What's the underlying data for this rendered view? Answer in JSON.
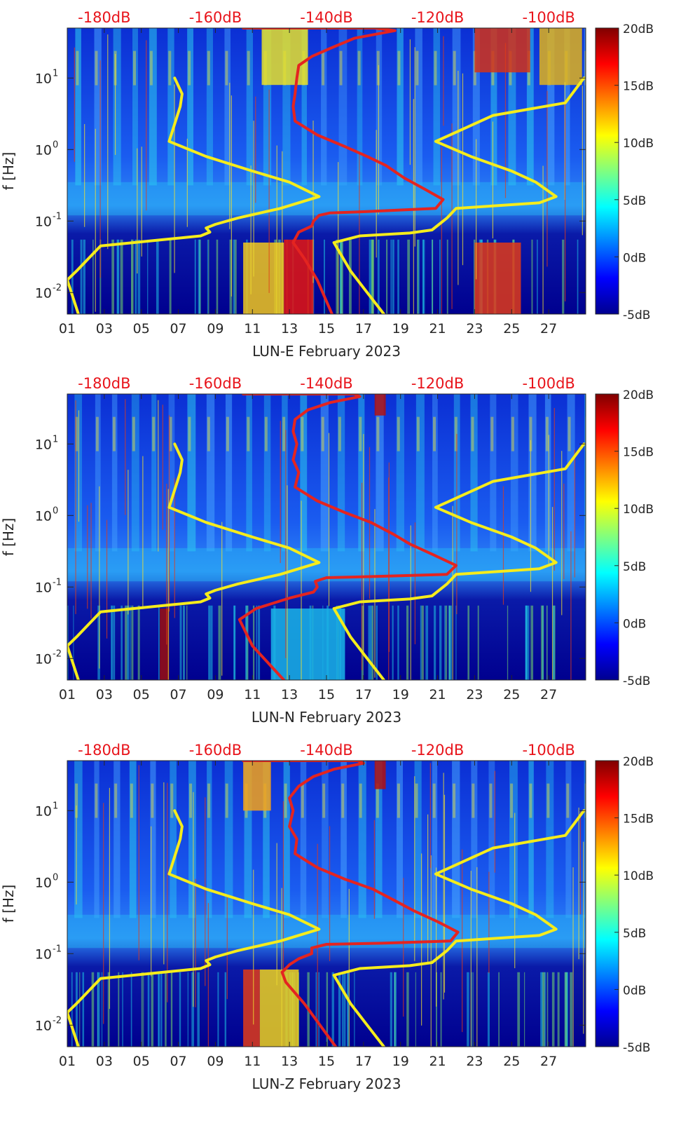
{
  "colors": {
    "top_axis": "#e8141b",
    "red_curve": "#e42420",
    "yellow_curve": "#f5ec1c",
    "axis_text": "#262626"
  },
  "chart_data": [
    {
      "type": "heatmap",
      "title": "",
      "xlabel": "LUN-E February 2023",
      "ylabel": "f [Hz]",
      "x_range_days": [
        1,
        29
      ],
      "x_ticks": [
        "01",
        "03",
        "05",
        "07",
        "09",
        "11",
        "13",
        "15",
        "17",
        "19",
        "21",
        "23",
        "25",
        "27"
      ],
      "y_scale": "log",
      "y_range_hz": [
        0.005,
        50
      ],
      "y_ticks": [
        {
          "value": 0.01,
          "label": "10",
          "exp": "-2"
        },
        {
          "value": 0.1,
          "label": "10",
          "exp": "-1"
        },
        {
          "value": 1,
          "label": "10",
          "exp": "0"
        },
        {
          "value": 10,
          "label": "10",
          "exp": "1"
        }
      ],
      "top_axis_ticks": [
        {
          "day": 3,
          "label": "-180dB"
        },
        {
          "day": 9,
          "label": "-160dB"
        },
        {
          "day": 15,
          "label": "-140dB"
        },
        {
          "day": 21,
          "label": "-120dB"
        },
        {
          "day": 27,
          "label": "-100dB"
        }
      ],
      "colorbar": {
        "min_db": -5,
        "max_db": 20,
        "ticks": [
          "-5dB",
          "0dB",
          "5dB",
          "10dB",
          "15dB",
          "20dB"
        ]
      },
      "series": [
        {
          "name": "red-noise-curve",
          "points": [
            [
              10.5,
              50
            ],
            [
              17.6,
              50
            ],
            [
              18.7,
              46
            ],
            [
              16.5,
              36
            ],
            [
              15.2,
              26
            ],
            [
              14.2,
              20
            ],
            [
              13.5,
              15
            ],
            [
              13.4,
              10
            ],
            [
              13.3,
              6
            ],
            [
              13.2,
              4
            ],
            [
              13.3,
              2.5
            ],
            [
              14.5,
              1.6
            ],
            [
              16,
              1.1
            ],
            [
              17.2,
              0.8
            ],
            [
              18.2,
              0.6
            ],
            [
              19.2,
              0.4
            ],
            [
              20.3,
              0.28
            ],
            [
              21.3,
              0.2
            ],
            [
              20.9,
              0.15
            ],
            [
              17,
              0.135
            ],
            [
              15.2,
              0.13
            ],
            [
              14.6,
              0.12
            ],
            [
              14.3,
              0.1
            ],
            [
              14.2,
              0.085
            ],
            [
              13.5,
              0.07
            ],
            [
              13.2,
              0.05
            ],
            [
              13.8,
              0.03
            ],
            [
              14.5,
              0.015
            ],
            [
              15.3,
              0.005
            ]
          ]
        },
        {
          "name": "yellow-noise-curve-left",
          "points": [
            [
              6.8,
              10
            ],
            [
              7.2,
              6
            ],
            [
              7.1,
              4
            ],
            [
              6.5,
              1.3
            ],
            [
              8.5,
              0.8
            ],
            [
              11,
              0.5
            ],
            [
              13,
              0.35
            ],
            [
              14.6,
              0.22
            ],
            [
              12.5,
              0.15
            ],
            [
              10.2,
              0.11
            ],
            [
              9,
              0.09
            ],
            [
              8.5,
              0.08
            ],
            [
              8.7,
              0.07
            ],
            [
              8.2,
              0.062
            ],
            [
              6.2,
              0.055
            ],
            [
              2.8,
              0.045
            ],
            [
              1.5,
              0.02
            ],
            [
              1,
              0.015
            ],
            [
              1.6,
              0.005
            ]
          ]
        },
        {
          "name": "yellow-noise-curve-right",
          "points": [
            [
              28.9,
              10
            ],
            [
              27.9,
              4.5
            ],
            [
              24,
              3
            ],
            [
              20.9,
              1.3
            ],
            [
              22.8,
              0.8
            ],
            [
              25,
              0.5
            ],
            [
              26.3,
              0.35
            ],
            [
              27.4,
              0.22
            ],
            [
              26.5,
              0.18
            ],
            [
              22,
              0.15
            ],
            [
              21.5,
              0.11
            ],
            [
              20.7,
              0.075
            ],
            [
              19.5,
              0.068
            ],
            [
              16.8,
              0.062
            ],
            [
              15.4,
              0.05
            ],
            [
              16.3,
              0.02
            ],
            [
              17.2,
              0.01
            ],
            [
              18.1,
              0.005
            ]
          ]
        }
      ]
    },
    {
      "type": "heatmap",
      "title": "",
      "xlabel": "LUN-N February 2023",
      "ylabel": "f [Hz]",
      "x_range_days": [
        1,
        29
      ],
      "x_ticks": [
        "01",
        "03",
        "05",
        "07",
        "09",
        "11",
        "13",
        "15",
        "17",
        "19",
        "21",
        "23",
        "25",
        "27"
      ],
      "y_scale": "log",
      "y_range_hz": [
        0.005,
        50
      ],
      "y_ticks": [
        {
          "value": 0.01,
          "label": "10",
          "exp": "-2"
        },
        {
          "value": 0.1,
          "label": "10",
          "exp": "-1"
        },
        {
          "value": 1,
          "label": "10",
          "exp": "0"
        },
        {
          "value": 10,
          "label": "10",
          "exp": "1"
        }
      ],
      "top_axis_ticks": [
        {
          "day": 3,
          "label": "-180dB"
        },
        {
          "day": 9,
          "label": "-160dB"
        },
        {
          "day": 15,
          "label": "-140dB"
        },
        {
          "day": 21,
          "label": "-120dB"
        },
        {
          "day": 27,
          "label": "-100dB"
        }
      ],
      "colorbar": {
        "min_db": -5,
        "max_db": 20,
        "ticks": [
          "-5dB",
          "0dB",
          "5dB",
          "10dB",
          "15dB",
          "20dB"
        ]
      },
      "series": [
        {
          "name": "red-noise-curve",
          "points": [
            [
              10.5,
              50
            ],
            [
              16.5,
              50
            ],
            [
              16.8,
              46
            ],
            [
              15.2,
              38
            ],
            [
              14,
              30
            ],
            [
              13.3,
              22
            ],
            [
              13.2,
              15
            ],
            [
              13.4,
              10
            ],
            [
              13.2,
              6
            ],
            [
              13.5,
              4
            ],
            [
              13.3,
              2.5
            ],
            [
              14.5,
              1.6
            ],
            [
              16,
              1.1
            ],
            [
              17.4,
              0.8
            ],
            [
              18.6,
              0.55
            ],
            [
              19.5,
              0.4
            ],
            [
              20.8,
              0.28
            ],
            [
              22,
              0.2
            ],
            [
              21.5,
              0.15
            ],
            [
              17.5,
              0.14
            ],
            [
              15,
              0.135
            ],
            [
              14.4,
              0.12
            ],
            [
              14.5,
              0.1
            ],
            [
              14.3,
              0.085
            ],
            [
              13,
              0.07
            ],
            [
              12,
              0.058
            ],
            [
              11.2,
              0.05
            ],
            [
              10.3,
              0.035
            ],
            [
              11,
              0.015
            ],
            [
              12.7,
              0.005
            ]
          ]
        },
        {
          "name": "yellow-noise-curve-left",
          "points": [
            [
              6.8,
              10
            ],
            [
              7.2,
              6
            ],
            [
              7.1,
              4
            ],
            [
              6.5,
              1.3
            ],
            [
              8.5,
              0.8
            ],
            [
              11,
              0.5
            ],
            [
              13,
              0.35
            ],
            [
              14.6,
              0.22
            ],
            [
              12.5,
              0.15
            ],
            [
              10.2,
              0.11
            ],
            [
              9,
              0.09
            ],
            [
              8.5,
              0.08
            ],
            [
              8.7,
              0.07
            ],
            [
              8.2,
              0.062
            ],
            [
              6.2,
              0.055
            ],
            [
              2.8,
              0.045
            ],
            [
              1.5,
              0.02
            ],
            [
              1,
              0.015
            ],
            [
              1.6,
              0.005
            ]
          ]
        },
        {
          "name": "yellow-noise-curve-right",
          "points": [
            [
              28.9,
              10
            ],
            [
              27.9,
              4.5
            ],
            [
              24,
              3
            ],
            [
              20.9,
              1.3
            ],
            [
              22.8,
              0.8
            ],
            [
              25,
              0.5
            ],
            [
              26.3,
              0.35
            ],
            [
              27.4,
              0.22
            ],
            [
              26.5,
              0.18
            ],
            [
              22,
              0.15
            ],
            [
              21.5,
              0.11
            ],
            [
              20.7,
              0.075
            ],
            [
              19.5,
              0.068
            ],
            [
              16.8,
              0.062
            ],
            [
              15.4,
              0.05
            ],
            [
              16.3,
              0.02
            ],
            [
              17.2,
              0.01
            ],
            [
              18.1,
              0.005
            ]
          ]
        }
      ]
    },
    {
      "type": "heatmap",
      "title": "",
      "xlabel": "LUN-Z February 2023",
      "ylabel": "f [Hz]",
      "x_range_days": [
        1,
        29
      ],
      "x_ticks": [
        "01",
        "03",
        "05",
        "07",
        "09",
        "11",
        "13",
        "15",
        "17",
        "19",
        "21",
        "23",
        "25",
        "27"
      ],
      "y_scale": "log",
      "y_range_hz": [
        0.005,
        50
      ],
      "y_ticks": [
        {
          "value": 0.01,
          "label": "10",
          "exp": "-2"
        },
        {
          "value": 0.1,
          "label": "10",
          "exp": "-1"
        },
        {
          "value": 1,
          "label": "10",
          "exp": "0"
        },
        {
          "value": 10,
          "label": "10",
          "exp": "1"
        }
      ],
      "top_axis_ticks": [
        {
          "day": 3,
          "label": "-180dB"
        },
        {
          "day": 9,
          "label": "-160dB"
        },
        {
          "day": 15,
          "label": "-140dB"
        },
        {
          "day": 21,
          "label": "-120dB"
        },
        {
          "day": 27,
          "label": "-100dB"
        }
      ],
      "colorbar": {
        "min_db": -5,
        "max_db": 20,
        "ticks": [
          "-5dB",
          "0dB",
          "5dB",
          "10dB",
          "15dB",
          "20dB"
        ]
      },
      "series": [
        {
          "name": "red-noise-curve",
          "points": [
            [
              10.5,
              50
            ],
            [
              16.7,
              50
            ],
            [
              17,
              46
            ],
            [
              15.4,
              38
            ],
            [
              14.3,
              30
            ],
            [
              13.5,
              22
            ],
            [
              13,
              15
            ],
            [
              13.2,
              10
            ],
            [
              13,
              6
            ],
            [
              13.4,
              4
            ],
            [
              13.3,
              2.5
            ],
            [
              14.5,
              1.6
            ],
            [
              16,
              1.1
            ],
            [
              17.5,
              0.8
            ],
            [
              18.7,
              0.55
            ],
            [
              19.7,
              0.4
            ],
            [
              21,
              0.28
            ],
            [
              22.1,
              0.2
            ],
            [
              21.7,
              0.15
            ],
            [
              18,
              0.14
            ],
            [
              15,
              0.135
            ],
            [
              14.2,
              0.12
            ],
            [
              14.2,
              0.1
            ],
            [
              13.5,
              0.085
            ],
            [
              13,
              0.07
            ],
            [
              12.6,
              0.055
            ],
            [
              12.8,
              0.04
            ],
            [
              13.8,
              0.02
            ],
            [
              15.5,
              0.005
            ]
          ]
        },
        {
          "name": "yellow-noise-curve-left",
          "points": [
            [
              6.8,
              10
            ],
            [
              7.2,
              6
            ],
            [
              7.1,
              4
            ],
            [
              6.5,
              1.3
            ],
            [
              8.5,
              0.8
            ],
            [
              11,
              0.5
            ],
            [
              13,
              0.35
            ],
            [
              14.6,
              0.22
            ],
            [
              12.5,
              0.15
            ],
            [
              10.2,
              0.11
            ],
            [
              9,
              0.09
            ],
            [
              8.5,
              0.08
            ],
            [
              8.7,
              0.07
            ],
            [
              8.2,
              0.062
            ],
            [
              6.2,
              0.055
            ],
            [
              2.8,
              0.045
            ],
            [
              1.5,
              0.02
            ],
            [
              1,
              0.015
            ],
            [
              1.6,
              0.005
            ]
          ]
        },
        {
          "name": "yellow-noise-curve-right",
          "points": [
            [
              28.9,
              10
            ],
            [
              27.9,
              4.5
            ],
            [
              24,
              3
            ],
            [
              20.9,
              1.3
            ],
            [
              22.8,
              0.8
            ],
            [
              25,
              0.5
            ],
            [
              26.3,
              0.35
            ],
            [
              27.4,
              0.22
            ],
            [
              26.5,
              0.18
            ],
            [
              22,
              0.15
            ],
            [
              21.5,
              0.11
            ],
            [
              20.7,
              0.075
            ],
            [
              19.5,
              0.068
            ],
            [
              16.8,
              0.062
            ],
            [
              15.4,
              0.05
            ],
            [
              16.3,
              0.02
            ],
            [
              17.2,
              0.01
            ],
            [
              18.1,
              0.005
            ]
          ]
        }
      ]
    }
  ]
}
